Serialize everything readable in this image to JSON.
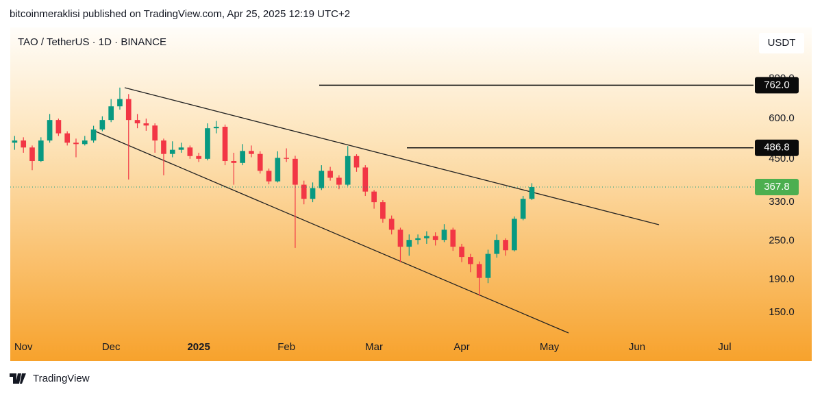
{
  "header": {
    "text": "bitcoinmeraklisi published on TradingView.com, Apr 25, 2025 12:19 UTC+2"
  },
  "chart_data": {
    "type": "candlestick",
    "title": "TAO / TetherUS · 1D · BINANCE",
    "currency": "USDT",
    "categories": [
      null,
      "Nov",
      null,
      null,
      null,
      null,
      null,
      null,
      null,
      null,
      null,
      "Dec",
      null,
      null,
      null,
      null,
      null,
      null,
      null,
      null,
      null,
      "2025",
      null,
      null,
      null,
      null,
      null,
      null,
      null,
      null,
      null,
      "Feb",
      null,
      null,
      null,
      null,
      null,
      null,
      null,
      null,
      null,
      "Mar",
      null,
      null,
      null,
      null,
      null,
      null,
      null,
      null,
      null,
      "Apr",
      null,
      null,
      null,
      null,
      null,
      null,
      null,
      null,
      null,
      "May",
      null,
      null,
      null,
      null,
      null,
      null,
      null,
      null,
      null,
      "Jun",
      null,
      null,
      null,
      null,
      null,
      null,
      null,
      null,
      null,
      "Jul",
      null,
      null
    ],
    "open": [
      505,
      513,
      488,
      443,
      513,
      594,
      540,
      505,
      500,
      513,
      555,
      594,
      655,
      690,
      594,
      580,
      571,
      513,
      466,
      480,
      488,
      459,
      450,
      560,
      566,
      443,
      437,
      476,
      466,
      413,
      383,
      453,
      450,
      374,
      338,
      365,
      413,
      393,
      374,
      459,
      423,
      356,
      330,
      293,
      271,
      240,
      252,
      255,
      259,
      252,
      271,
      240,
      223,
      212,
      192,
      228,
      252,
      234,
      293,
      338,
      null,
      null,
      null,
      null,
      null,
      null,
      null,
      null,
      null,
      null,
      null,
      null,
      null,
      null,
      null,
      null,
      null,
      null,
      null,
      null,
      null,
      null,
      null,
      null
    ],
    "high": [
      530,
      525,
      495,
      525,
      620,
      600,
      548,
      520,
      530,
      570,
      610,
      690,
      749,
      715,
      620,
      600,
      580,
      520,
      510,
      505,
      495,
      470,
      580,
      590,
      575,
      470,
      500,
      495,
      475,
      420,
      475,
      485,
      460,
      385,
      380,
      430,
      425,
      400,
      493,
      465,
      430,
      360,
      335,
      300,
      275,
      262,
      262,
      268,
      266,
      282,
      275,
      245,
      228,
      216,
      235,
      262,
      255,
      298,
      345,
      378,
      null,
      null,
      null,
      null,
      null,
      null,
      null,
      null,
      null,
      null,
      null,
      null,
      null,
      null,
      null,
      null,
      null,
      null,
      null,
      null,
      null,
      null,
      null,
      null
    ],
    "low": [
      480,
      470,
      415,
      440,
      505,
      530,
      495,
      455,
      495,
      505,
      548,
      585,
      640,
      388,
      560,
      550,
      470,
      400,
      455,
      470,
      450,
      440,
      445,
      540,
      430,
      374,
      430,
      455,
      405,
      375,
      380,
      440,
      238,
      325,
      330,
      360,
      385,
      362,
      370,
      410,
      345,
      315,
      285,
      262,
      215,
      225,
      244,
      245,
      242,
      248,
      233,
      215,
      200,
      169,
      185,
      222,
      225,
      232,
      290,
      335,
      null,
      null,
      null,
      null,
      null,
      null,
      null,
      null,
      null,
      null,
      null,
      null,
      null,
      null,
      null,
      null,
      null,
      null,
      null,
      null,
      null,
      null,
      null,
      null
    ],
    "close": [
      513,
      488,
      443,
      513,
      594,
      540,
      505,
      500,
      513,
      555,
      594,
      655,
      690,
      594,
      580,
      571,
      513,
      466,
      480,
      488,
      459,
      450,
      560,
      566,
      443,
      437,
      476,
      466,
      413,
      383,
      453,
      450,
      374,
      338,
      365,
      413,
      393,
      374,
      459,
      423,
      356,
      330,
      293,
      271,
      240,
      252,
      255,
      259,
      252,
      271,
      240,
      223,
      212,
      192,
      228,
      252,
      234,
      293,
      338,
      367.8,
      null,
      null,
      null,
      null,
      null,
      null,
      null,
      null,
      null,
      null,
      null,
      null,
      null,
      null,
      null,
      null,
      null,
      null,
      null,
      null,
      null,
      null,
      null,
      null
    ],
    "up_color": "#089981",
    "down_color": "#f23645",
    "log_scale": true,
    "ylim": [
      127,
      1124
    ],
    "yticks": [
      {
        "value": 150,
        "label": "150.0"
      },
      {
        "value": 190,
        "label": "190.0"
      },
      {
        "value": 250,
        "label": "250.0"
      },
      {
        "value": 330,
        "label": "330.0"
      },
      {
        "value": 450,
        "label": "450.0"
      },
      {
        "value": 600,
        "label": "600.0"
      },
      {
        "value": 800,
        "label": "800.0"
      }
    ],
    "levels": [
      {
        "value": 762,
        "label": "762.0"
      },
      {
        "value": 486.8,
        "label": "486.8"
      }
    ]
  },
  "footer": {
    "brand": "TradingView"
  }
}
